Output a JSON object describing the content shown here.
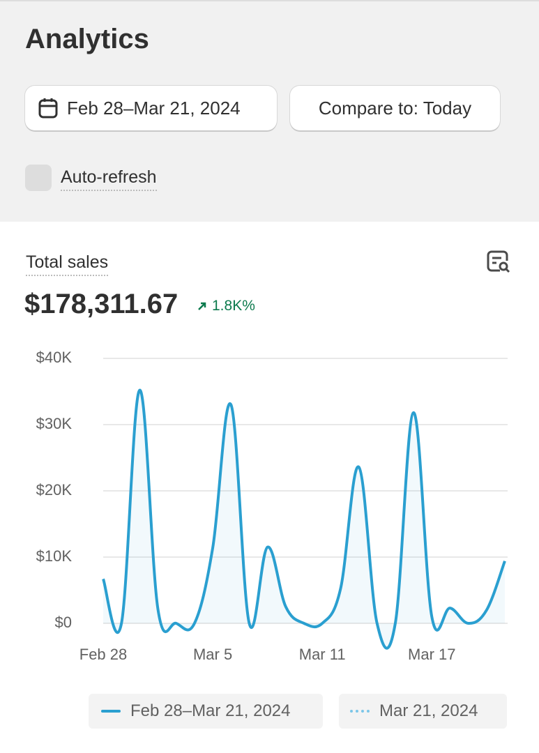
{
  "header": {
    "title": "Analytics",
    "date_range": "Feb 28–Mar 21, 2024",
    "compare": "Compare to: Today",
    "auto_refresh": "Auto-refresh"
  },
  "card": {
    "label": "Total sales",
    "total": "$178,311.67",
    "change": "1.8K%"
  },
  "chart_data": {
    "type": "line",
    "categories": [
      "Feb 28",
      null,
      null,
      null,
      null,
      null,
      "Mar 5",
      null,
      null,
      null,
      null,
      null,
      "Mar 11",
      null,
      null,
      null,
      null,
      null,
      "Mar 17",
      null,
      null,
      null,
      null
    ],
    "series": [
      {
        "name": "Feb 28–Mar 21, 2024",
        "color": "#2a9fd0",
        "values": [
          6700,
          0,
          35200,
          2100,
          0,
          0,
          11400,
          33000,
          0,
          11500,
          2500,
          0,
          0,
          5200,
          23600,
          0,
          0,
          31800,
          1000,
          2300,
          0,
          2000,
          9400
        ]
      },
      {
        "name": "Mar 21, 2024",
        "color": "#7cc6e8",
        "values": [
          null,
          null,
          null,
          null,
          null,
          null,
          null,
          null,
          null,
          null,
          null,
          null,
          null,
          null,
          null,
          null,
          null,
          null,
          null,
          null,
          null,
          null,
          null
        ]
      }
    ],
    "ylim": [
      0,
      40000
    ],
    "yticks": [
      {
        "value": 0,
        "label": "$0"
      },
      {
        "value": 10000,
        "label": "$10K"
      },
      {
        "value": 20000,
        "label": "$20K"
      },
      {
        "value": 30000,
        "label": "$30K"
      },
      {
        "value": 40000,
        "label": "$40K"
      }
    ],
    "grid": true
  }
}
